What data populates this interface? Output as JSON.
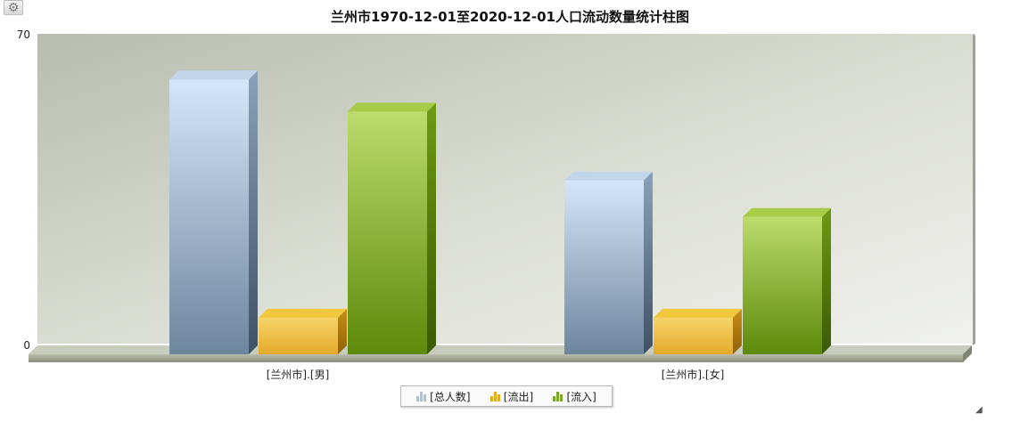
{
  "toolbar": {
    "settings_icon": "gear-icon"
  },
  "chart_data": {
    "type": "bar",
    "title": "兰州市1970-12-01至2020-12-01人口流动数量统计柱图",
    "categories": [
      "[兰州市].[男]",
      "[兰州市].[女]"
    ],
    "series": [
      {
        "name": "[总人数]",
        "values": [
          60,
          38
        ],
        "color": "#8fa9c4"
      },
      {
        "name": "[流出]",
        "values": [
          8,
          8
        ],
        "color": "#e8b83a"
      },
      {
        "name": "[流入]",
        "values": [
          53,
          30
        ],
        "color": "#7fae2e"
      }
    ],
    "ylim": [
      0,
      70
    ],
    "y_ticks": [
      "0",
      "70"
    ],
    "xlabel": "",
    "ylabel": "",
    "grid": false,
    "legend_position": "bottom-center",
    "style": "3d-column"
  }
}
